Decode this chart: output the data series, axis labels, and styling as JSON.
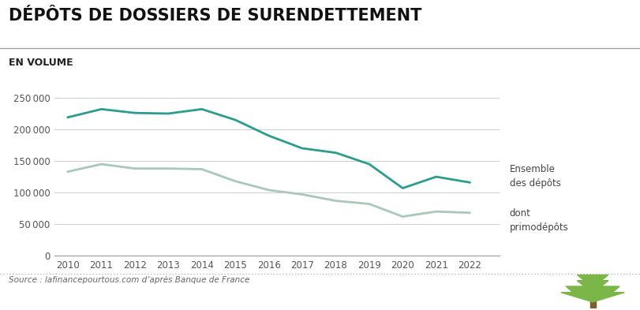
{
  "title": "DÉPÔTS DE DOSSIERS DE SURENDETTEMENT",
  "subtitle": "EN VOLUME",
  "source": "Source : lafinancepourtous.com d’après Banque de France",
  "years": [
    2010,
    2011,
    2012,
    2013,
    2014,
    2015,
    2016,
    2017,
    2018,
    2019,
    2020,
    2021,
    2022
  ],
  "ensemble_depots": [
    219000,
    232000,
    226000,
    225000,
    232000,
    215000,
    190000,
    170000,
    163000,
    145000,
    107000,
    125000,
    116000
  ],
  "dont_primodepots": [
    133000,
    145000,
    138000,
    138000,
    137000,
    118000,
    104000,
    97000,
    87000,
    82000,
    62000,
    70000,
    68000
  ],
  "color_ensemble": "#2a9d8f",
  "color_primodepots": "#a8c8b8",
  "background_color": "#ffffff",
  "ylim": [
    0,
    260000
  ],
  "yticks": [
    0,
    50000,
    100000,
    150000,
    200000,
    250000
  ],
  "legend_ensemble": "Ensemble\ndes dépôts",
  "legend_primodo": "dont\nprimodépôts",
  "title_fontsize": 15,
  "subtitle_fontsize": 9,
  "axis_fontsize": 8.5,
  "line_width": 2.0,
  "tree_color": "#7ab648",
  "grid_color": "#d0d0d0",
  "spine_color": "#999999",
  "tick_color": "#555555",
  "source_color": "#666666",
  "legend_color": "#444444"
}
